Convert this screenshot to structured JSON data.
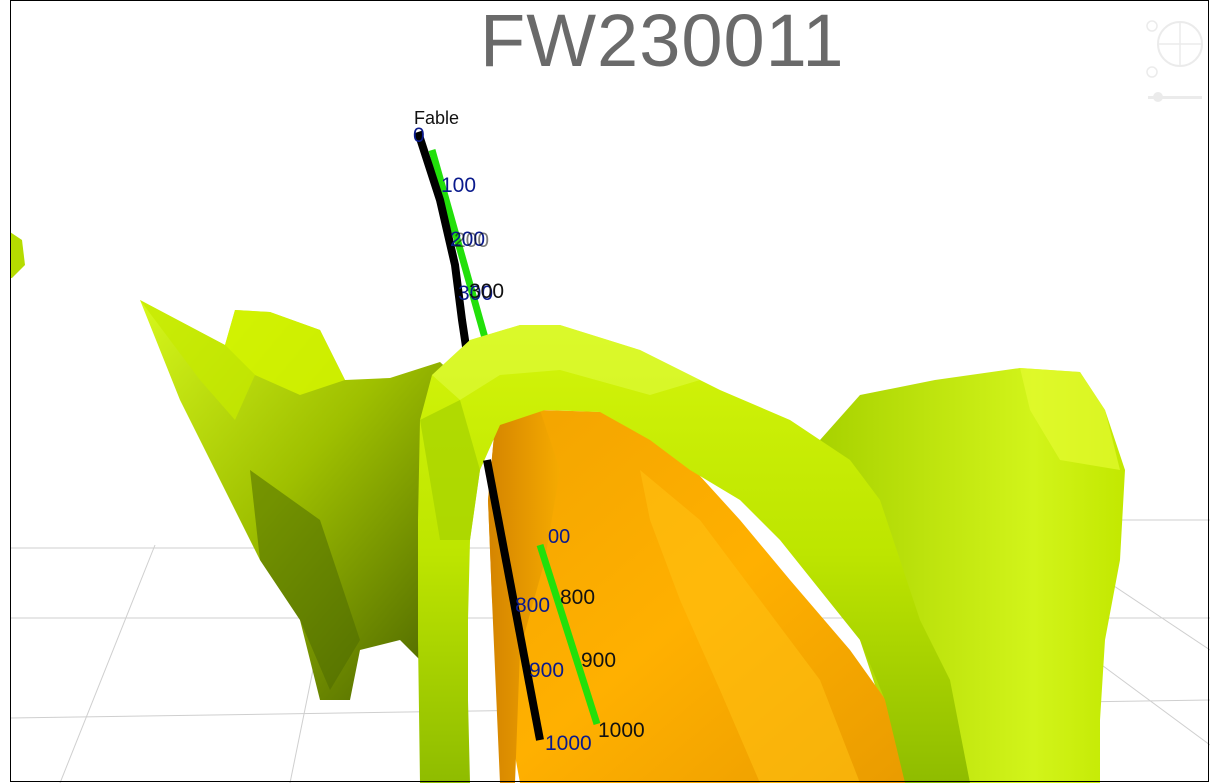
{
  "title": "FW230011",
  "well_label": "Fable",
  "depth_labels_blue": [
    "0",
    "100",
    "200",
    "300",
    "800",
    "900",
    "1000"
  ],
  "depth_labels_black": [
    "300",
    "800",
    "900",
    "1000"
  ],
  "partial_label": "00",
  "colors": {
    "surface_green": "#c7f000",
    "surface_orange": "#f0a000",
    "wellpath_black": "#000000",
    "wellpath_green": "#22e00a",
    "title_text": "#6a6a6a",
    "depth_label_blue": "#0a1a8c"
  },
  "icons": {
    "navigation_widget": "compass-zoom-widget"
  }
}
